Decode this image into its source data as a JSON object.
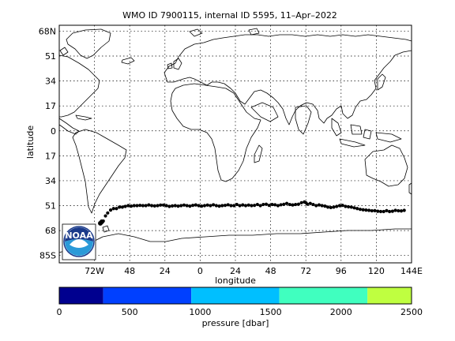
{
  "chart_data": {
    "type": "scatter",
    "title": "WMO ID 7900115, internal ID 5595, 11–Apr–2022",
    "xlabel": "longitude",
    "ylabel": "latitude",
    "xlim": [
      -96,
      144
    ],
    "ylim": [
      -90,
      72
    ],
    "x_ticks": [
      {
        "v": -72,
        "label": "72W"
      },
      {
        "v": -48,
        "label": "48"
      },
      {
        "v": -24,
        "label": "24"
      },
      {
        "v": 0,
        "label": "0"
      },
      {
        "v": 24,
        "label": "24"
      },
      {
        "v": 48,
        "label": "48"
      },
      {
        "v": 72,
        "label": "72"
      },
      {
        "v": 96,
        "label": "96"
      },
      {
        "v": 120,
        "label": "120"
      },
      {
        "v": 144,
        "label": "144E"
      }
    ],
    "y_ticks": [
      {
        "v": 68,
        "label": "68N"
      },
      {
        "v": 51,
        "label": "51"
      },
      {
        "v": 34,
        "label": "34"
      },
      {
        "v": 17,
        "label": "17"
      },
      {
        "v": 0,
        "label": "0"
      },
      {
        "v": -17,
        "label": "17"
      },
      {
        "v": -34,
        "label": "34"
      },
      {
        "v": -51,
        "label": "51"
      },
      {
        "v": -68,
        "label": "68"
      },
      {
        "v": -85,
        "label": "85S"
      }
    ],
    "grid": true,
    "marker_color": "#000000",
    "series": [
      {
        "x": [
          -68,
          -67,
          -66,
          -64.5,
          -63,
          -61,
          -59,
          -57,
          -55,
          -53,
          -51,
          -49,
          -47,
          -45,
          -43,
          -41,
          -39,
          -37,
          -35,
          -33,
          -31,
          -29,
          -27,
          -25,
          -23,
          -21,
          -19,
          -17,
          -15,
          -13,
          -11,
          -9,
          -7,
          -5,
          -3,
          -1,
          1,
          3,
          5,
          7,
          9,
          11,
          13,
          15,
          17,
          19,
          21,
          23,
          25,
          27,
          29,
          31,
          33,
          35,
          37,
          39,
          41,
          43,
          45,
          47,
          49,
          51,
          53,
          55,
          57,
          59,
          61,
          63,
          65,
          67,
          69,
          71,
          72,
          73,
          75,
          77,
          79,
          81,
          83,
          85,
          87,
          89,
          91,
          93,
          95,
          97,
          99,
          101,
          103,
          105,
          107,
          109,
          111,
          113,
          115,
          117,
          119,
          121,
          123,
          125,
          127,
          129,
          131,
          133,
          135,
          137,
          139
        ],
        "y": [
          -63,
          -62,
          -61.5,
          -58,
          -56,
          -54,
          -53,
          -53,
          -52,
          -52,
          -51.5,
          -51,
          -51.3,
          -51,
          -51,
          -50.8,
          -51,
          -51,
          -50.5,
          -51,
          -51.2,
          -51,
          -50.6,
          -50.6,
          -51,
          -51.5,
          -51.2,
          -51,
          -51.3,
          -51,
          -50.6,
          -51,
          -51.3,
          -50.8,
          -50.5,
          -51,
          -51.3,
          -51,
          -50.6,
          -51,
          -50.4,
          -51,
          -51.3,
          -51,
          -50.8,
          -50.4,
          -51,
          -51,
          -50.2,
          -51,
          -50.5,
          -51,
          -50.6,
          -51,
          -50.8,
          -50.2,
          -51,
          -50.2,
          -50,
          -50.8,
          -50.2,
          -50.4,
          -51,
          -50.4,
          -50.1,
          -49.5,
          -50.2,
          -50.5,
          -50.2,
          -50,
          -49,
          -48.5,
          -49,
          -50,
          -49.5,
          -50.2,
          -51,
          -50.5,
          -51,
          -51.3,
          -52,
          -52.3,
          -52,
          -51.5,
          -51,
          -50.8,
          -51.5,
          -51.8,
          -52,
          -52.5,
          -53,
          -53.5,
          -53.8,
          -54,
          -54.2,
          -54.5,
          -54.4,
          -54.8,
          -55,
          -55,
          -54.4,
          -55,
          -54.8,
          -54.2,
          -54.5,
          -54.6,
          -54.2
        ]
      }
    ],
    "colorbar": {
      "label": "pressure [dbar]",
      "range": [
        0,
        2500
      ],
      "tick_labels": [
        "0",
        "500",
        "1000",
        "1500",
        "2000",
        "2500"
      ],
      "colors": [
        "#00008f",
        "#0040ff",
        "#00bfff",
        "#40ffbf",
        "#bfff40",
        "#ffbf00"
      ],
      "bounds": [
        0,
        312,
        937,
        1562,
        2187,
        2500
      ]
    }
  },
  "logo": {
    "text": "NOAA"
  }
}
